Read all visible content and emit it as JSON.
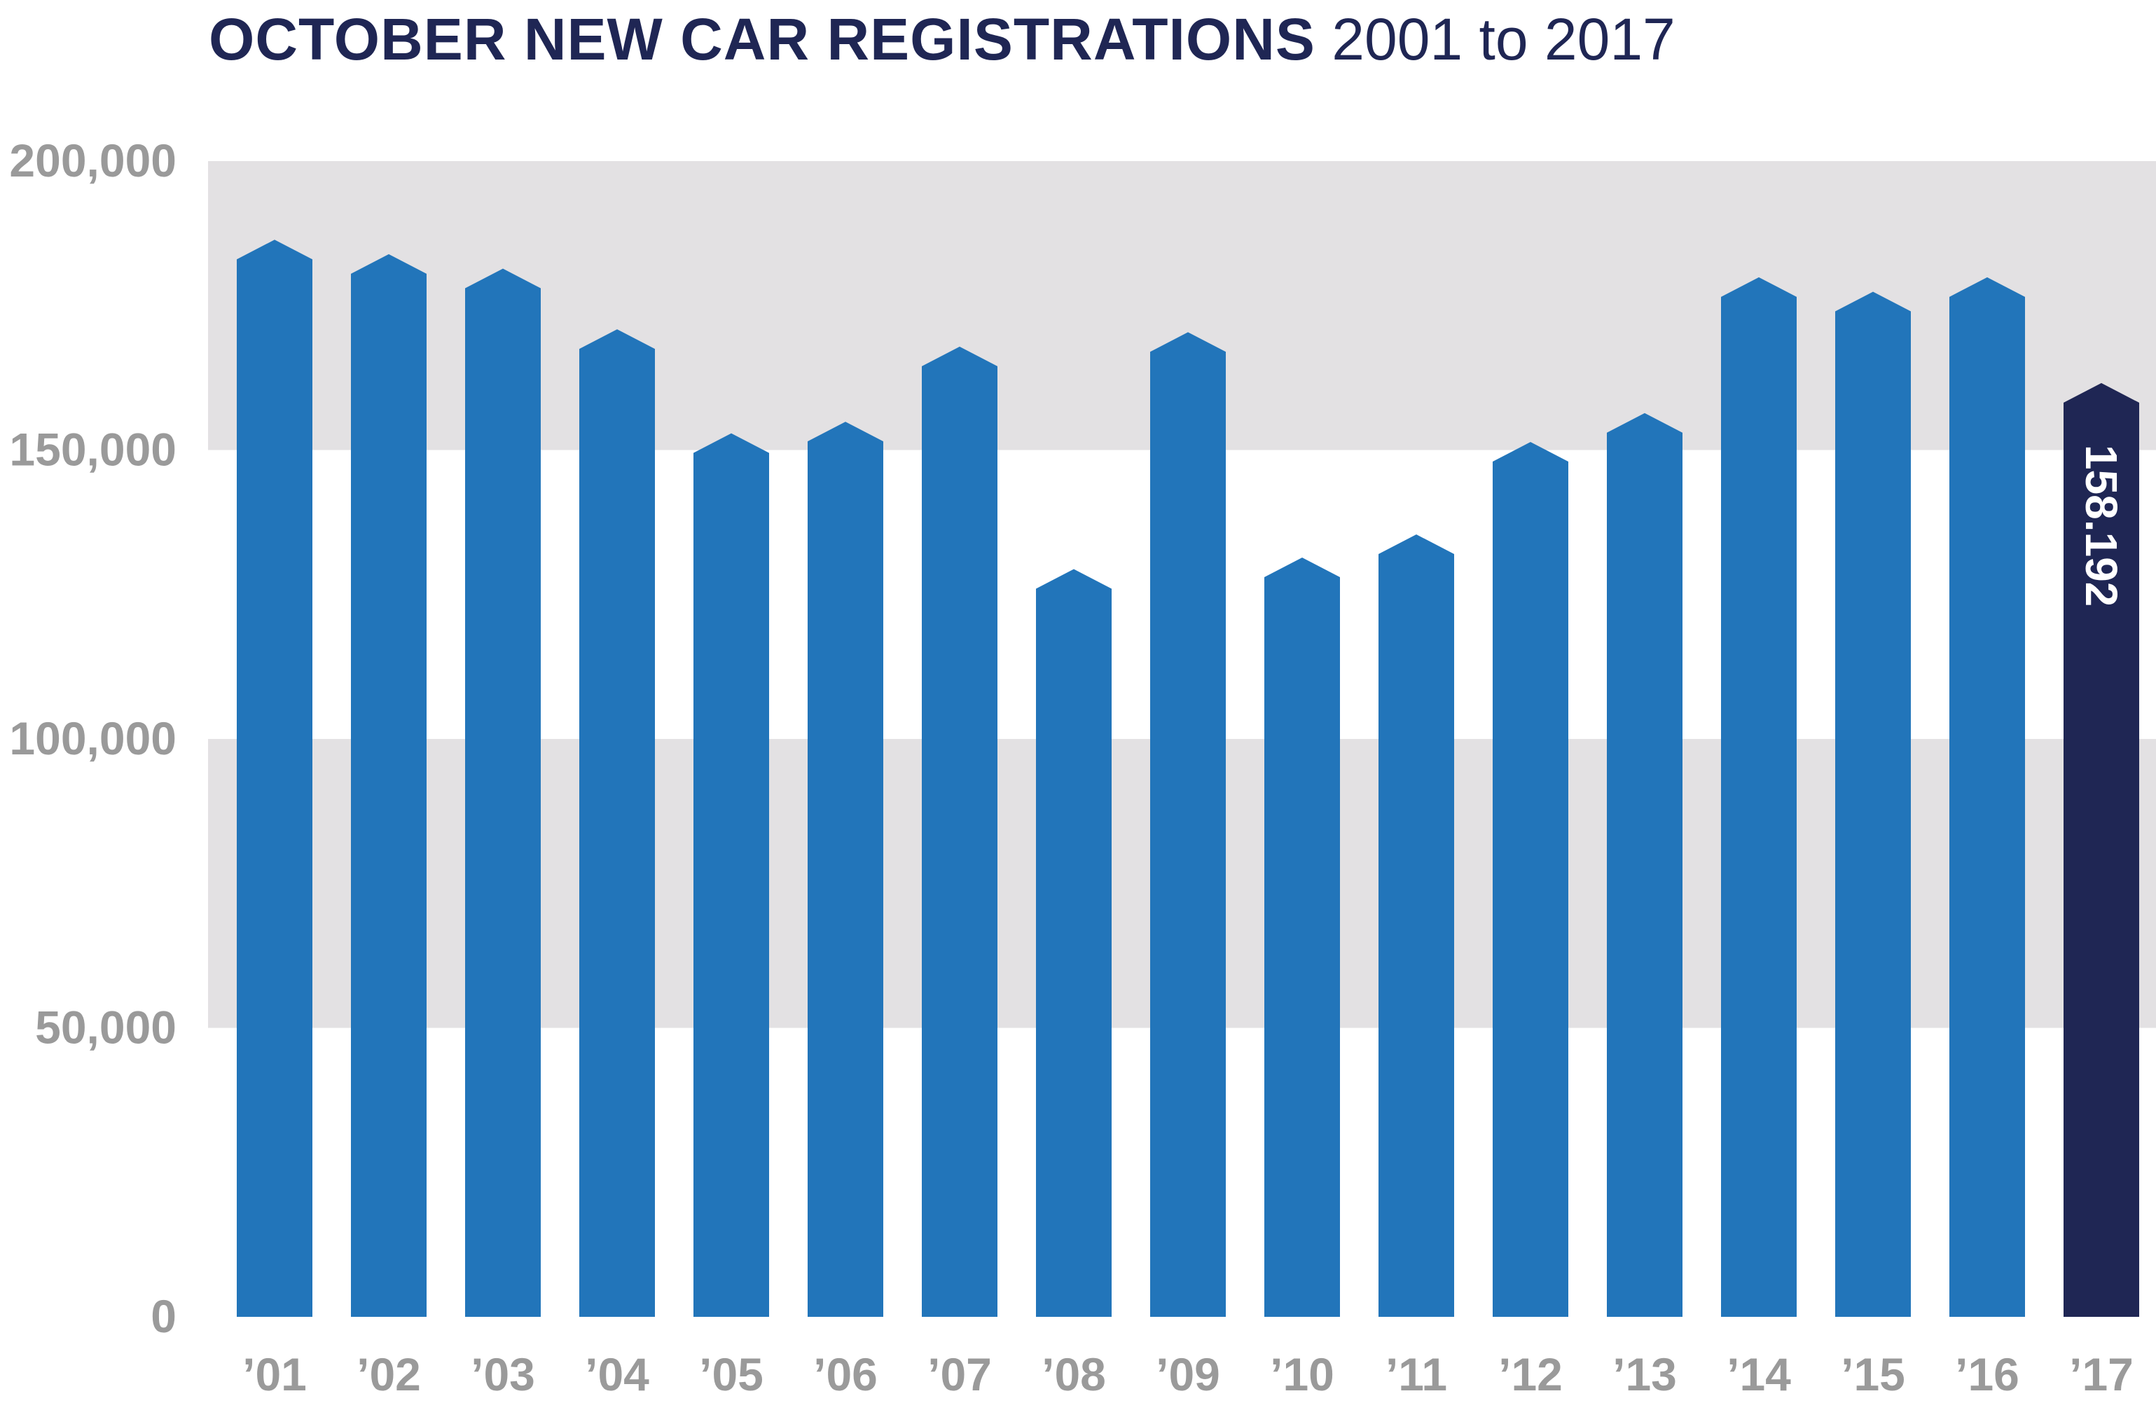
{
  "title": {
    "bold": "OCTOBER NEW CAR REGISTRATIONS",
    "light": "2001 to 2017"
  },
  "colors": {
    "bar": "#2275ba",
    "highlight": "#1f2654",
    "band": "#e3e1e3",
    "axis_text": "#9a9a9a"
  },
  "chart_data": {
    "type": "bar",
    "title": "OCTOBER NEW CAR REGISTRATIONS 2001 to 2017",
    "categories": [
      "’01",
      "’02",
      "’03",
      "’04",
      "’05",
      "’06",
      "’07",
      "’08",
      "’09",
      "’10",
      "’11",
      "’12",
      "’13",
      "’14",
      "’15",
      "’16",
      "’17"
    ],
    "values": [
      183000,
      180500,
      178000,
      167500,
      149500,
      151500,
      164500,
      126000,
      167000,
      128000,
      132000,
      148000,
      153000,
      176500,
      174000,
      176500,
      158192
    ],
    "highlight_index": 16,
    "data_labels": [
      {
        "index": 16,
        "text": "158.192"
      }
    ],
    "ylim": [
      0,
      200000
    ],
    "yticks": [
      0,
      50000,
      100000,
      150000,
      200000
    ],
    "ytick_labels": [
      "0",
      "50,000",
      "100,000",
      "150,000",
      "200,000"
    ],
    "xlabel": "",
    "ylabel": "",
    "grid": "alternating shaded bands"
  }
}
